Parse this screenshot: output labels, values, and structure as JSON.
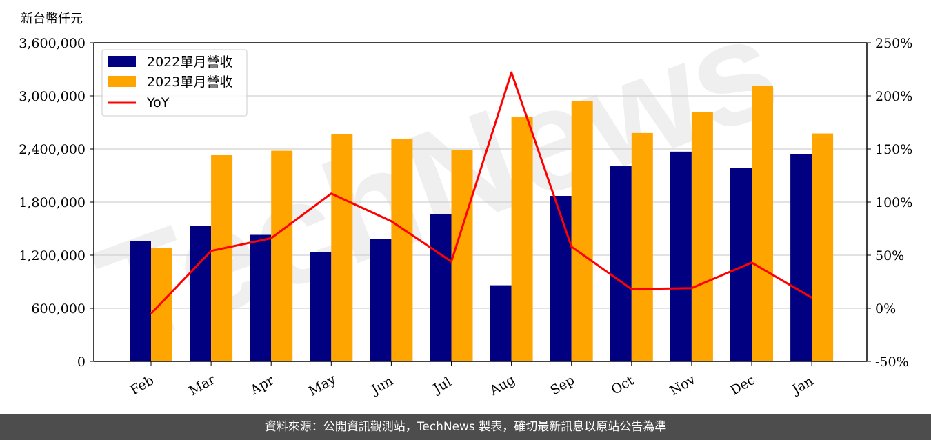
{
  "chart_data": {
    "type": "bar",
    "unit_label": "新台幣仟元",
    "categories": [
      "Feb",
      "Mar",
      "Apr",
      "May",
      "Jun",
      "Jul",
      "Aug",
      "Sep",
      "Oct",
      "Nov",
      "Dec",
      "Jan"
    ],
    "series": [
      {
        "name": "2022單月營收",
        "color": "#000080",
        "axis": "left",
        "values": [
          1360000,
          1530000,
          1430000,
          1235000,
          1385000,
          1665000,
          860000,
          1870000,
          2205000,
          2370000,
          2185000,
          2345000
        ]
      },
      {
        "name": "2023單月營收",
        "color": "#ffa500",
        "axis": "left",
        "values": [
          1280000,
          2330000,
          2380000,
          2565000,
          2510000,
          2385000,
          2765000,
          2945000,
          2580000,
          2815000,
          3110000,
          2575000
        ]
      }
    ],
    "line_series": {
      "name": "YoY",
      "color": "#ff0000",
      "axis": "right",
      "values": [
        -5,
        54,
        66,
        108,
        82,
        44,
        222,
        58,
        18,
        19,
        43,
        10
      ]
    },
    "left_ylim": [
      0,
      3600000
    ],
    "left_ticks": [
      "0",
      "600,000",
      "1,200,000",
      "1,800,000",
      "2,400,000",
      "3,000,000",
      "3,600,000"
    ],
    "right_ylim": [
      -50,
      250
    ],
    "right_ticks": [
      "-50%",
      "0%",
      "50%",
      "100%",
      "150%",
      "200%",
      "250%"
    ],
    "grid": true,
    "legend_position": "top-left",
    "watermark": "TechNews"
  },
  "footer": {
    "text": "資料來源：公開資訊觀測站，TechNews 製表，確切最新訊息以原站公告為準"
  }
}
